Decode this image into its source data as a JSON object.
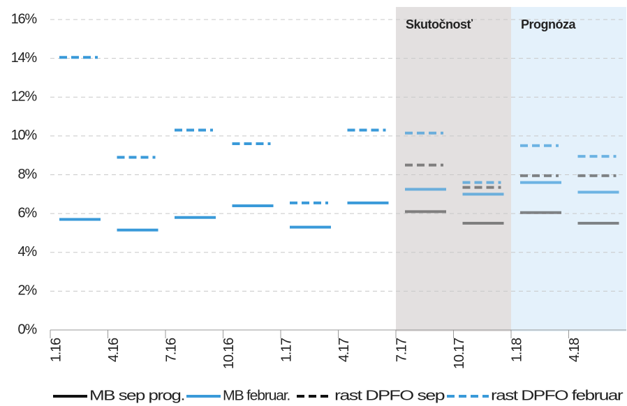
{
  "chart_data": {
    "type": "line",
    "categories": [
      "1.16",
      "4.16",
      "7.16",
      "10.16",
      "1.17",
      "4.17",
      "7.17",
      "10.17",
      "1.18",
      "4.18"
    ],
    "series": [
      {
        "name": "MB sep prog.",
        "color": "#555555",
        "dashed": false,
        "values": [
          null,
          null,
          null,
          null,
          null,
          null,
          6.1,
          5.5,
          6.05,
          5.5
        ]
      },
      {
        "name": "MB februar.",
        "color": "#3a9ad9",
        "dashed": false,
        "values": [
          5.7,
          5.15,
          5.8,
          6.4,
          5.3,
          6.55,
          7.25,
          7.0,
          7.6,
          7.1
        ]
      },
      {
        "name": "rast DPFO sep",
        "color": "#555555",
        "dashed": true,
        "values": [
          null,
          null,
          null,
          null,
          null,
          null,
          8.5,
          7.35,
          7.95,
          7.95
        ]
      },
      {
        "name": "rast DPFO februar",
        "color": "#3a9ad9",
        "dashed": true,
        "values": [
          14.05,
          8.9,
          10.3,
          9.6,
          6.55,
          10.3,
          10.15,
          7.6,
          9.5,
          8.95
        ]
      }
    ],
    "regions": [
      {
        "label": "Skutočnosť",
        "from": "7.17",
        "to": "10.17",
        "color": "#e3e0e0"
      },
      {
        "label": "Prognóza",
        "from": "1.18",
        "to": "4.18",
        "color": "#e4f1fb"
      }
    ],
    "ylim": [
      0,
      16
    ],
    "yticks": [
      {
        "value": 0,
        "label": "0%"
      },
      {
        "value": 2,
        "label": "2%"
      },
      {
        "value": 4,
        "label": "4%"
      },
      {
        "value": 6,
        "label": "6%"
      },
      {
        "value": 8,
        "label": "8%"
      },
      {
        "value": 10,
        "label": "10%"
      },
      {
        "value": 12,
        "label": "12%"
      },
      {
        "value": 14,
        "label": "14%"
      },
      {
        "value": 16,
        "label": "16%"
      }
    ],
    "grid": true,
    "legend": "bottom"
  }
}
